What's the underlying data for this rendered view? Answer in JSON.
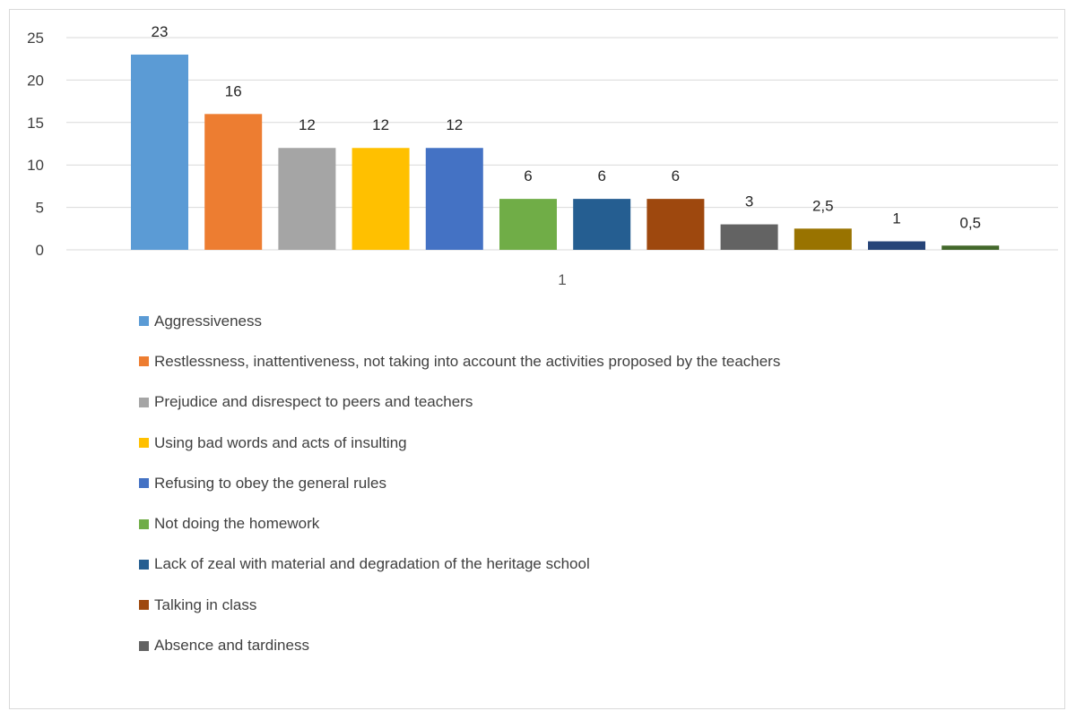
{
  "chart_data": {
    "type": "bar",
    "title": "",
    "xlabel": "",
    "ylabel": "",
    "categories": [
      "1"
    ],
    "ylim": [
      0,
      25
    ],
    "yticks": [
      "0",
      "5",
      "10",
      "15",
      "20",
      "25"
    ],
    "grid": "horizontal",
    "legend_position": "bottom",
    "series": [
      {
        "name": "Aggressiveness",
        "value": 23,
        "label": "23",
        "color": "#5B9BD5"
      },
      {
        "name": "Restlessness, inattentiveness, not taking into account the activities proposed by the teachers",
        "value": 16,
        "label": "16",
        "color": "#ED7D31"
      },
      {
        "name": "Prejudice and disrespect to peers and teachers",
        "value": 12,
        "label": "12",
        "color": "#A5A5A5"
      },
      {
        "name": "Using bad words and acts of insulting",
        "value": 12,
        "label": "12",
        "color": "#FFC000"
      },
      {
        "name": "Refusing to obey the general rules",
        "value": 12,
        "label": "12",
        "color": "#4472C4"
      },
      {
        "name": "Not doing the homework",
        "value": 6,
        "label": "6",
        "color": "#70AD47"
      },
      {
        "name": "Lack of zeal with material and degradation of the heritage school",
        "value": 6,
        "label": "6",
        "color": "#255E91"
      },
      {
        "name": "Talking in class",
        "value": 6,
        "label": "6",
        "color": "#9E480E"
      },
      {
        "name": "Absence and tardiness",
        "value": 3,
        "label": "3",
        "color": "#636363"
      },
      {
        "value": 2.5,
        "label": "2,5",
        "color": "#997300"
      },
      {
        "value": 1,
        "label": "1",
        "color": "#264478"
      },
      {
        "value": 0.5,
        "label": "0,5",
        "color": "#43682B"
      }
    ]
  }
}
